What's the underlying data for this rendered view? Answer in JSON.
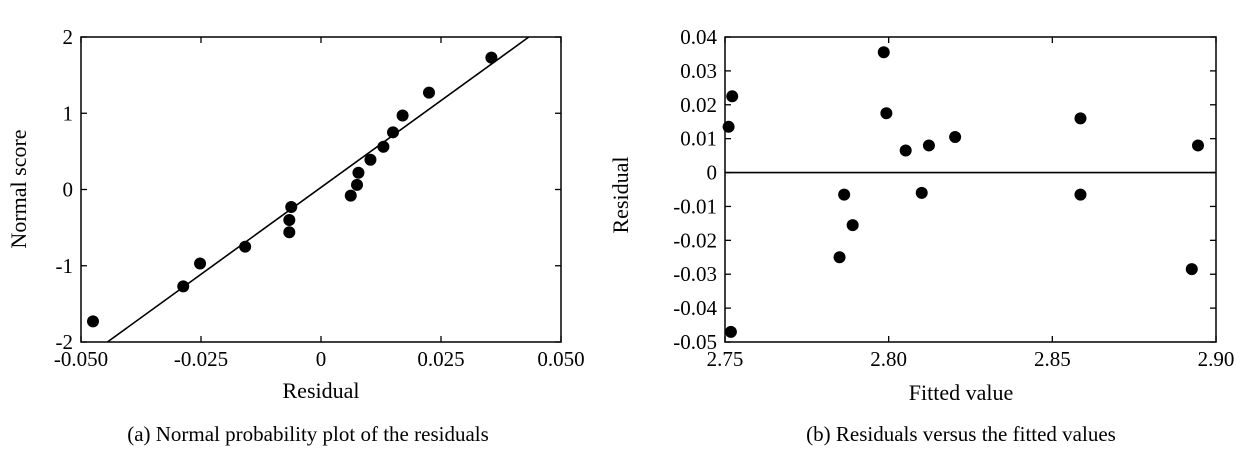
{
  "chart_data": [
    {
      "type": "scatter",
      "caption": "(a) Normal probability plot of the residuals",
      "xlabel": "Residual",
      "ylabel": "Normal score",
      "xlim": [
        -0.05,
        0.05
      ],
      "ylim": [
        -2,
        2
      ],
      "x_ticks": [
        -0.05,
        -0.025,
        0,
        0.025,
        0.05
      ],
      "x_tick_labels": [
        "-0.050",
        "-0.025",
        "0",
        "0.025",
        "0.050"
      ],
      "y_ticks": [
        -2,
        -1,
        0,
        1,
        2
      ],
      "y_tick_labels": [
        "-2",
        "-1",
        "0",
        "1",
        "2"
      ],
      "grid": false,
      "points": [
        {
          "x": -0.0475,
          "y": -1.73
        },
        {
          "x": -0.0287,
          "y": -1.27
        },
        {
          "x": -0.0252,
          "y": -0.97
        },
        {
          "x": -0.0158,
          "y": -0.75
        },
        {
          "x": -0.0066,
          "y": -0.56
        },
        {
          "x": -0.0066,
          "y": -0.4
        },
        {
          "x": -0.0062,
          "y": -0.23
        },
        {
          "x": 0.0062,
          "y": -0.08
        },
        {
          "x": 0.0075,
          "y": 0.06
        },
        {
          "x": 0.0078,
          "y": 0.22
        },
        {
          "x": 0.0103,
          "y": 0.39
        },
        {
          "x": 0.013,
          "y": 0.56
        },
        {
          "x": 0.015,
          "y": 0.75
        },
        {
          "x": 0.017,
          "y": 0.97
        },
        {
          "x": 0.0225,
          "y": 1.27
        },
        {
          "x": 0.0355,
          "y": 1.73
        }
      ],
      "fit_line": {
        "x": [
          -0.0445,
          0.0433
        ],
        "y": [
          -2,
          2
        ]
      }
    },
    {
      "type": "scatter",
      "caption": "(b) Residuals versus the fitted values",
      "xlabel": "Fitted value",
      "ylabel": "Residual",
      "xlim": [
        2.75,
        2.9
      ],
      "ylim": [
        -0.05,
        0.04
      ],
      "x_ticks": [
        2.75,
        2.8,
        2.85,
        2.9
      ],
      "x_tick_labels": [
        "2.75",
        "2.80",
        "2.85",
        "2.90"
      ],
      "y_ticks": [
        -0.05,
        -0.04,
        -0.03,
        -0.02,
        -0.01,
        0,
        0.01,
        0.02,
        0.03,
        0.04
      ],
      "y_tick_labels": [
        "-0.05",
        "-0.04",
        "-0.03",
        "-0.02",
        "-0.01",
        "0",
        "0.01",
        "0.02",
        "0.03",
        "0.04"
      ],
      "grid": false,
      "reference_line_y": 0,
      "points": [
        {
          "x": 2.7522,
          "y": 0.0225
        },
        {
          "x": 2.7511,
          "y": 0.0135
        },
        {
          "x": 2.7518,
          "y": -0.047
        },
        {
          "x": 2.7985,
          "y": 0.0355
        },
        {
          "x": 2.7993,
          "y": 0.0175
        },
        {
          "x": 2.7864,
          "y": -0.0065
        },
        {
          "x": 2.789,
          "y": -0.0155
        },
        {
          "x": 2.785,
          "y": -0.025
        },
        {
          "x": 2.8052,
          "y": 0.0065
        },
        {
          "x": 2.8123,
          "y": 0.008
        },
        {
          "x": 2.8203,
          "y": 0.0105
        },
        {
          "x": 2.8101,
          "y": -0.006
        },
        {
          "x": 2.8586,
          "y": 0.016
        },
        {
          "x": 2.8586,
          "y": -0.0065
        },
        {
          "x": 2.8945,
          "y": 0.008
        },
        {
          "x": 2.8926,
          "y": -0.0285
        }
      ]
    }
  ]
}
